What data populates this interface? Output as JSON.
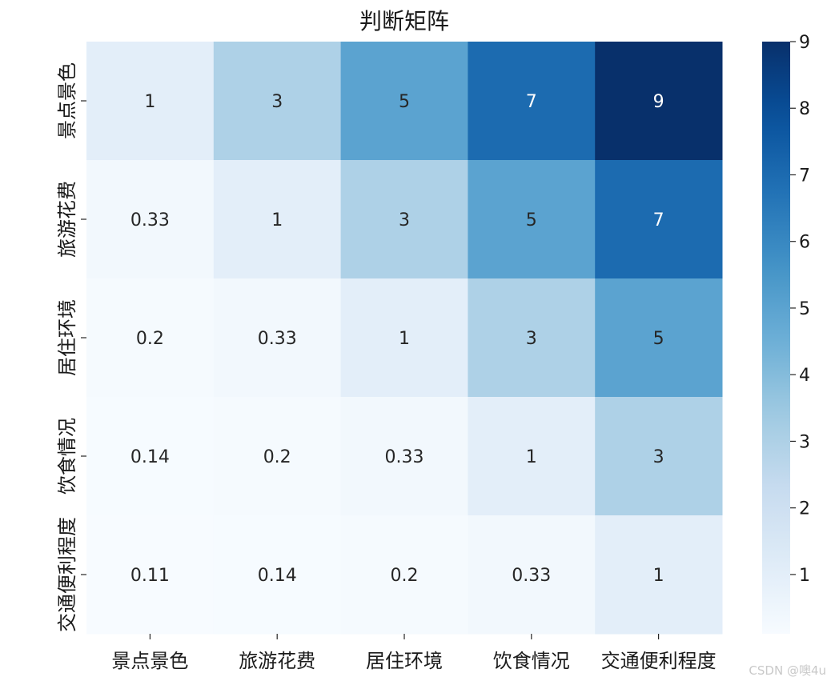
{
  "chart_data": {
    "type": "heatmap",
    "title": "判断矩阵",
    "rows": [
      "景点景色",
      "旅游花费",
      "居住环境",
      "饮食情况",
      "交通便利程度"
    ],
    "columns": [
      "景点景色",
      "旅游花费",
      "居住环境",
      "饮食情况",
      "交通便利程度"
    ],
    "values": [
      [
        1,
        3,
        5,
        7,
        9
      ],
      [
        0.33,
        1,
        3,
        5,
        7
      ],
      [
        0.2,
        0.33,
        1,
        3,
        5
      ],
      [
        0.14,
        0.2,
        0.33,
        1,
        3
      ],
      [
        0.11,
        0.14,
        0.2,
        0.33,
        1
      ]
    ],
    "annotations": [
      [
        "1",
        "3",
        "5",
        "7",
        "9"
      ],
      [
        "0.33",
        "1",
        "3",
        "5",
        "7"
      ],
      [
        "0.2",
        "0.33",
        "1",
        "3",
        "5"
      ],
      [
        "0.14",
        "0.2",
        "0.33",
        "1",
        "3"
      ],
      [
        "0.11",
        "0.14",
        "0.2",
        "0.33",
        "1"
      ]
    ],
    "colormap": "Blues",
    "vmin": 0.11,
    "vmax": 9,
    "colorbar_ticks": [
      1,
      2,
      3,
      4,
      5,
      6,
      7,
      8,
      9
    ]
  },
  "watermark": "CSDN @噢4u"
}
